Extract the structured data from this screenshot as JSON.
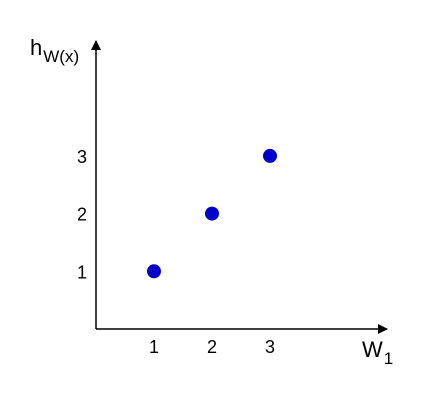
{
  "chart_data": {
    "type": "scatter",
    "xlabel": "W",
    "xlabel_subscript": "1",
    "ylabel": "h",
    "ylabel_subscript": "W(x)",
    "x_ticks": [
      "1",
      "2",
      "3"
    ],
    "y_ticks": [
      "1",
      "2",
      "3"
    ],
    "xlim": [
      0,
      4
    ],
    "ylim": [
      0,
      4.5
    ],
    "grid": false,
    "series": [
      {
        "x": [
          1,
          2,
          3
        ],
        "y": [
          1,
          2,
          3
        ]
      }
    ],
    "point_color": "#0000cc",
    "axis_color": "#000000"
  }
}
